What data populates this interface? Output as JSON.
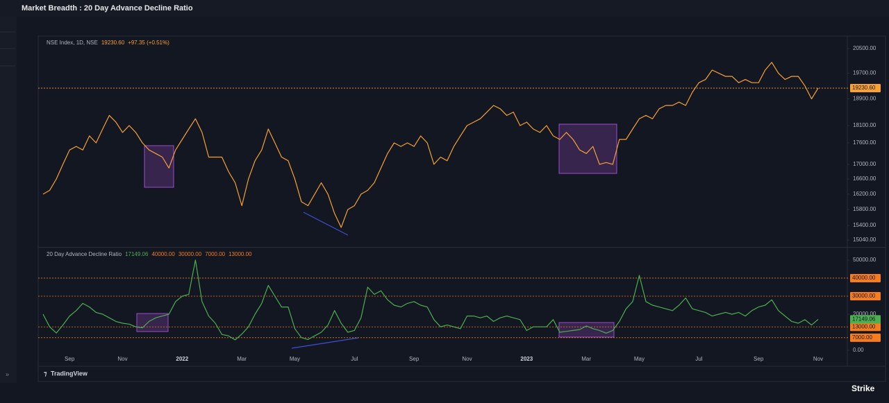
{
  "title": "Market Breadth : 20 Day Advance Decline Ratio",
  "footer": {
    "brand": "TradingView",
    "logo": "Strike"
  },
  "chart_data": [
    {
      "type": "line",
      "log": true,
      "legend": "NSE Index, 1D, NSE",
      "change": "+97.35 (+0.51%)",
      "current": {
        "value": 19230.6,
        "label": "19230.60"
      },
      "current_line": true,
      "ylim": [
        14890,
        20850
      ],
      "yticks": [
        {
          "value": 20500,
          "label": "20500.00"
        },
        {
          "value": 19700,
          "label": "19700.00"
        },
        {
          "value": 18900,
          "label": "18900.00"
        },
        {
          "value": 18100,
          "label": "18100.00"
        },
        {
          "value": 17600,
          "label": "17600.00"
        },
        {
          "value": 17000,
          "label": "17000.00"
        },
        {
          "value": 16600,
          "label": "16600.00"
        },
        {
          "value": 16200,
          "label": "16200.00"
        },
        {
          "value": 15800,
          "label": "15800.00"
        },
        {
          "value": 15400,
          "label": "15400.00"
        },
        {
          "value": 15040,
          "label": "15040.00"
        }
      ],
      "series": [
        {
          "name": "NSE Index",
          "color": "#f7a233",
          "values": [
            16200,
            16300,
            16600,
            17000,
            17400,
            17500,
            17400,
            17800,
            17600,
            18000,
            18400,
            18200,
            17900,
            18100,
            17900,
            17600,
            17400,
            17300,
            17200,
            16900,
            17400,
            17700,
            18000,
            18300,
            17900,
            17200,
            17200,
            17200,
            16800,
            16500,
            15900,
            16600,
            17100,
            17400,
            18000,
            17600,
            17200,
            17100,
            16600,
            16000,
            15900,
            16200,
            16500,
            16200,
            15700,
            15350,
            15800,
            15900,
            16200,
            16300,
            16500,
            16900,
            17300,
            17600,
            17500,
            17600,
            17500,
            17800,
            17600,
            17000,
            17200,
            17100,
            17500,
            17800,
            18100,
            18200,
            18300,
            18500,
            18700,
            18600,
            18400,
            18500,
            18100,
            18200,
            18000,
            17900,
            18100,
            17800,
            17700,
            17900,
            17700,
            17400,
            17300,
            17500,
            17000,
            17050,
            17000,
            17700,
            17700,
            18000,
            18300,
            18400,
            18300,
            18600,
            18700,
            18700,
            18800,
            18700,
            19100,
            19400,
            19500,
            19800,
            19700,
            19600,
            19600,
            19400,
            19500,
            19400,
            19400,
            19800,
            20050,
            19700,
            19500,
            19600,
            19600,
            19300,
            18900,
            19230.6
          ]
        }
      ]
    },
    {
      "type": "line",
      "legend": "20 Day Advance Decline Ratio",
      "current": {
        "value": 17149.06,
        "label": "17149.06"
      },
      "levels": [
        {
          "value": 40000,
          "label": "40000.00"
        },
        {
          "value": 30000,
          "label": "30000.00"
        },
        {
          "value": 7000,
          "label": "7000.00"
        },
        {
          "value": 13000,
          "label": "13000.00"
        }
      ],
      "level_color": "#f57c1f",
      "ylim": [
        -1900,
        56500
      ],
      "yticks": [
        {
          "value": 50000,
          "label": "50000.00"
        },
        {
          "value": 20000,
          "label": "20000.00"
        },
        {
          "value": 0,
          "label": "0.00"
        }
      ],
      "categories": [
        null,
        null,
        null,
        null,
        "Sep",
        null,
        null,
        null,
        null,
        null,
        null,
        null,
        "Nov",
        null,
        null,
        null,
        null,
        null,
        null,
        null,
        null,
        "2022",
        null,
        null,
        null,
        null,
        null,
        null,
        null,
        null,
        "Mar",
        null,
        null,
        null,
        null,
        null,
        null,
        null,
        "May",
        null,
        null,
        null,
        null,
        null,
        null,
        null,
        null,
        "Jul",
        null,
        null,
        null,
        null,
        null,
        null,
        null,
        null,
        "Sep",
        null,
        null,
        null,
        null,
        null,
        null,
        null,
        "Nov",
        null,
        null,
        null,
        null,
        null,
        null,
        null,
        null,
        "2023",
        null,
        null,
        null,
        null,
        null,
        null,
        null,
        null,
        "Mar",
        null,
        null,
        null,
        null,
        null,
        null,
        null,
        "May",
        null,
        null,
        null,
        null,
        null,
        null,
        null,
        null,
        "Jul",
        null,
        null,
        null,
        null,
        null,
        null,
        null,
        null,
        "Sep",
        null,
        null,
        null,
        null,
        null,
        null,
        null,
        null,
        "Nov"
      ],
      "series": [
        {
          "name": "20 Day Advance Decline Ratio",
          "color": "#4caf50",
          "values": [
            20000,
            13000,
            9600,
            14000,
            19000,
            22000,
            26000,
            24000,
            21000,
            20000,
            18000,
            16000,
            15000,
            14500,
            13000,
            12500,
            16000,
            18000,
            19000,
            20000,
            27000,
            30000,
            31000,
            50000,
            27000,
            19000,
            15000,
            8800,
            8000,
            5800,
            9000,
            13000,
            20000,
            26000,
            36000,
            30000,
            24000,
            24000,
            12000,
            7000,
            6000,
            8000,
            10000,
            14000,
            22000,
            15000,
            10000,
            11000,
            18000,
            35000,
            31000,
            33000,
            28000,
            25000,
            24000,
            26000,
            27000,
            25000,
            24000,
            17000,
            13000,
            14000,
            13000,
            12000,
            19000,
            19000,
            18000,
            19000,
            16000,
            18000,
            19000,
            18000,
            17000,
            11000,
            13000,
            13000,
            13000,
            17000,
            10000,
            10500,
            11000,
            11500,
            13500,
            12000,
            11000,
            9500,
            11000,
            16000,
            23000,
            27000,
            41500,
            27000,
            25000,
            24000,
            23000,
            22000,
            25000,
            29000,
            23000,
            22000,
            21000,
            19000,
            20000,
            21000,
            20000,
            21000,
            19000,
            22000,
            24000,
            25000,
            28000,
            22000,
            19000,
            16000,
            15000,
            17000,
            14000,
            17149.06
          ]
        }
      ]
    }
  ]
}
